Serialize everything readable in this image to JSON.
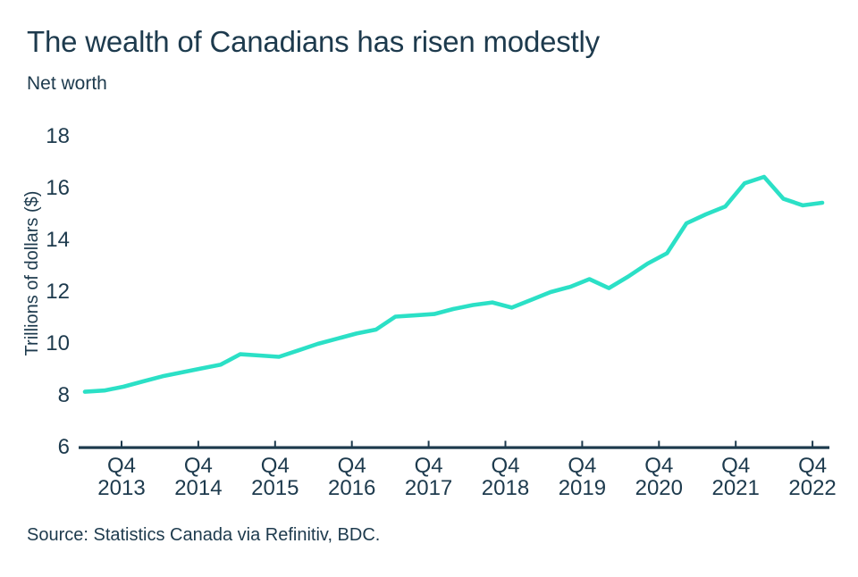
{
  "header": {
    "title": "The wealth of Canadians has risen modestly",
    "subtitle": "Net worth"
  },
  "footer": {
    "source": "Source: Statistics Canada via Refinitiv, BDC."
  },
  "colors": {
    "line": "#2BE0C6",
    "ink": "#1D3A4D"
  },
  "chart_data": {
    "type": "line",
    "title": "The wealth of Canadians has risen modestly",
    "subtitle": "Net worth",
    "ylabel": "Trillions of dollars ($)",
    "xlabel": "",
    "ylim": [
      6,
      18
    ],
    "grid": false,
    "legend_position": "none",
    "y_ticks": [
      18,
      16,
      14,
      12,
      10,
      8,
      6
    ],
    "x_ticks": [
      {
        "quarter": "Q4",
        "year": "2013"
      },
      {
        "quarter": "Q4",
        "year": "2014"
      },
      {
        "quarter": "Q4",
        "year": "2015"
      },
      {
        "quarter": "Q4",
        "year": "2016"
      },
      {
        "quarter": "Q4",
        "year": "2017"
      },
      {
        "quarter": "Q4",
        "year": "2018"
      },
      {
        "quarter": "Q4",
        "year": "2019"
      },
      {
        "quarter": "Q4",
        "year": "2020"
      },
      {
        "quarter": "Q4",
        "year": "2021"
      },
      {
        "quarter": "Q4",
        "year": "2022"
      }
    ],
    "series": [
      {
        "name": "Net worth",
        "x": [
          "Q2 2013",
          "Q3 2013",
          "Q4 2013",
          "Q1 2014",
          "Q2 2014",
          "Q3 2014",
          "Q4 2014",
          "Q1 2015",
          "Q2 2015",
          "Q3 2015",
          "Q4 2015",
          "Q1 2016",
          "Q2 2016",
          "Q3 2016",
          "Q4 2016",
          "Q1 2017",
          "Q2 2017",
          "Q3 2017",
          "Q4 2017",
          "Q1 2018",
          "Q2 2018",
          "Q3 2018",
          "Q4 2018",
          "Q1 2019",
          "Q2 2019",
          "Q3 2019",
          "Q4 2019",
          "Q1 2020",
          "Q2 2020",
          "Q3 2020",
          "Q4 2020",
          "Q1 2021",
          "Q2 2021",
          "Q3 2021",
          "Q4 2021",
          "Q1 2022",
          "Q2 2022",
          "Q3 2022",
          "Q4 2022"
        ],
        "values": [
          8.15,
          8.2,
          8.35,
          8.55,
          8.75,
          8.9,
          9.05,
          9.2,
          9.6,
          9.55,
          9.5,
          9.75,
          10.0,
          10.2,
          10.4,
          10.55,
          11.05,
          11.1,
          11.15,
          11.35,
          11.5,
          11.6,
          11.4,
          11.7,
          12.0,
          12.2,
          12.5,
          12.15,
          12.6,
          13.1,
          13.5,
          14.65,
          15.0,
          15.3,
          16.2,
          16.45,
          15.6,
          15.35,
          15.45
        ]
      }
    ]
  }
}
